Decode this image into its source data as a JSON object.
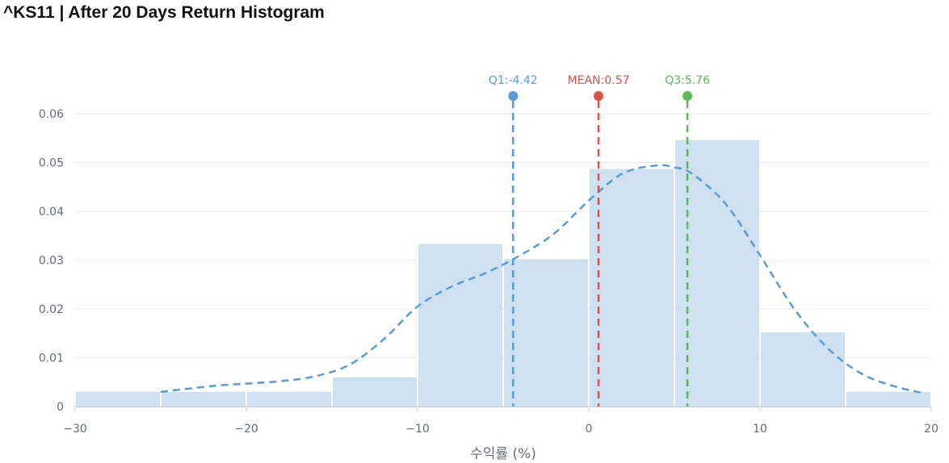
{
  "chart_data": {
    "type": "histogram",
    "title": "^KS11 | After 20 Days Return Histogram",
    "xlabel": "수익률 (%)",
    "ylabel": "",
    "xlim": [
      -30,
      20
    ],
    "ylim": [
      0,
      0.06
    ],
    "x_ticks": [
      "−30",
      "−20",
      "−10",
      "0",
      "10",
      "20"
    ],
    "x_tick_values": [
      -30,
      -20,
      -10,
      0,
      10,
      20
    ],
    "y_ticks": [
      "0",
      "0.01",
      "0.02",
      "0.03",
      "0.04",
      "0.05",
      "0.06"
    ],
    "y_tick_values": [
      0,
      0.01,
      0.02,
      0.03,
      0.04,
      0.05,
      0.06
    ],
    "grid": true,
    "bars": [
      {
        "x0": -30,
        "x1": -25,
        "value": 0.003
      },
      {
        "x0": -25,
        "x1": -20,
        "value": 0.003
      },
      {
        "x0": -20,
        "x1": -15,
        "value": 0.003
      },
      {
        "x0": -15,
        "x1": -10,
        "value": 0.006
      },
      {
        "x0": -10,
        "x1": -5,
        "value": 0.0333
      },
      {
        "x0": -5,
        "x1": 0,
        "value": 0.0302
      },
      {
        "x0": 0,
        "x1": 5,
        "value": 0.0487
      },
      {
        "x0": 5,
        "x1": 10,
        "value": 0.0546
      },
      {
        "x0": 10,
        "x1": 15,
        "value": 0.0152
      },
      {
        "x0": 15,
        "x1": 20,
        "value": 0.003
      }
    ],
    "density_curve": {
      "x": [
        -25,
        -22,
        -20,
        -18,
        -16,
        -14,
        -12,
        -10,
        -8,
        -6,
        -4,
        -2,
        0,
        2,
        4,
        5,
        6,
        8,
        10,
        12,
        14,
        16,
        18,
        19.5
      ],
      "y": [
        0.003,
        0.0042,
        0.0047,
        0.0052,
        0.0062,
        0.0085,
        0.0137,
        0.0205,
        0.0246,
        0.0274,
        0.031,
        0.0355,
        0.0422,
        0.0478,
        0.0494,
        0.049,
        0.0478,
        0.0415,
        0.031,
        0.02,
        0.0118,
        0.0066,
        0.004,
        0.0028
      ]
    },
    "markers": [
      {
        "label": "Q1:-4.42",
        "value": -4.42,
        "color": "#5b9bd5"
      },
      {
        "label": "MEAN:0.57",
        "value": 0.57,
        "color": "#d9534f"
      },
      {
        "label": "Q3:5.76",
        "value": 5.76,
        "color": "#5cb85c"
      }
    ],
    "colors": {
      "bar_fill": "#cfe0f1",
      "curve": "#5b9bd5",
      "grid": "#e6e9ef",
      "axis": "#c8ccd4"
    }
  }
}
